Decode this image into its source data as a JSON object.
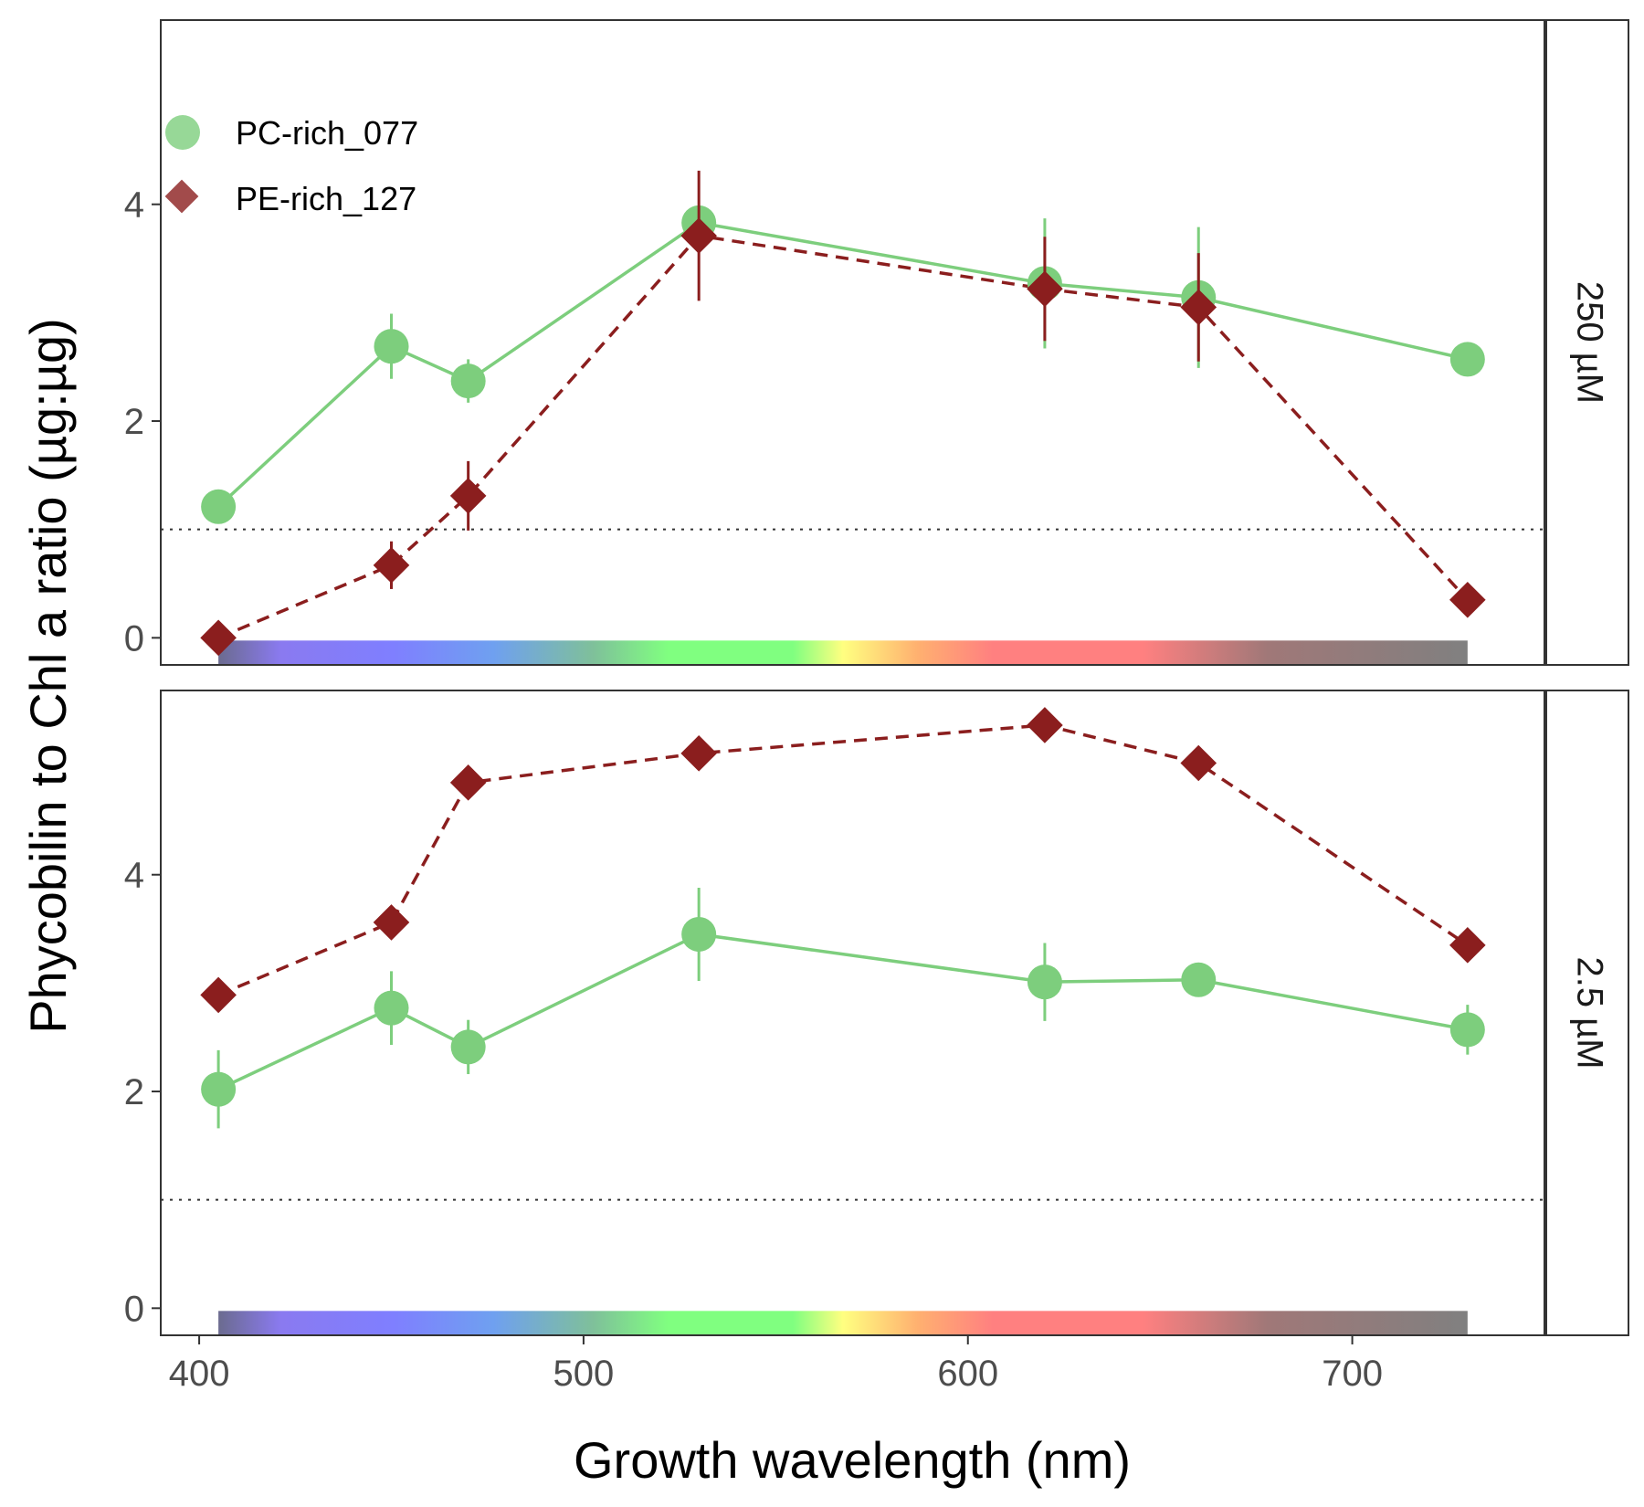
{
  "chart_data": {
    "type": "line",
    "xlabel": "Growth wavelength (nm)",
    "ylabel": "Phycobilin to Chl a ratio (µg:µg)",
    "x_ticks": [
      400,
      500,
      600,
      700
    ],
    "y_ticks": [
      0,
      2,
      4
    ],
    "xlim": [
      390,
      750
    ],
    "ylim": [
      -0.25,
      5.7
    ],
    "reference_line_y": 1,
    "legend_position": "top-left",
    "wavelength_band": [
      405,
      730
    ],
    "colors": {
      "PC": "#7dce7d",
      "PE": "#8b1e1e"
    },
    "legend": [
      {
        "name": "PC-rich_077",
        "shape": "circle",
        "color": "#7dce7d"
      },
      {
        "name": "PE-rich_127",
        "shape": "diamond",
        "color": "#8b1e1e"
      }
    ],
    "x": [
      405,
      450,
      470,
      530,
      620,
      660,
      730
    ],
    "panels": [
      {
        "strip": "250 µM",
        "series": [
          {
            "name": "PC-rich_077",
            "values": [
              1.21,
              2.69,
              2.37,
              3.83,
              3.27,
              3.14,
              2.57
            ],
            "errors": [
              0,
              0.3,
              0.2,
              0.1,
              0.6,
              0.65,
              0
            ]
          },
          {
            "name": "PE-rich_127",
            "values": [
              0.0,
              0.67,
              1.31,
              3.71,
              3.22,
              3.05,
              0.35
            ],
            "errors": [
              0,
              0.22,
              0.32,
              0.6,
              0.48,
              0.5,
              0
            ]
          }
        ]
      },
      {
        "strip": "2.5 µM",
        "series": [
          {
            "name": "PC-rich_077",
            "values": [
              2.02,
              2.77,
              2.41,
              3.45,
              3.01,
              3.03,
              2.57
            ],
            "errors": [
              0.36,
              0.34,
              0.25,
              0.43,
              0.36,
              0,
              0.23
            ]
          },
          {
            "name": "PE-rich_127",
            "values": [
              2.89,
              3.56,
              4.85,
              5.12,
              5.38,
              5.03,
              3.35
            ],
            "errors": [
              0,
              0,
              0,
              0,
              0,
              0,
              0
            ]
          }
        ]
      }
    ]
  }
}
